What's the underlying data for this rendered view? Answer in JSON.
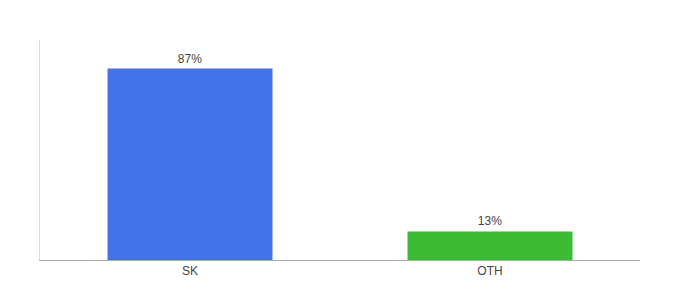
{
  "chart_data": {
    "type": "bar",
    "categories": [
      "SK",
      "OTH"
    ],
    "values": [
      87,
      13
    ],
    "value_labels": [
      "87%",
      "13%"
    ],
    "colors": [
      "#4472e8",
      "#3dbb35"
    ],
    "ylim": [
      0,
      100
    ],
    "data_labels": true,
    "tick_labels": "x",
    "grid": false
  }
}
